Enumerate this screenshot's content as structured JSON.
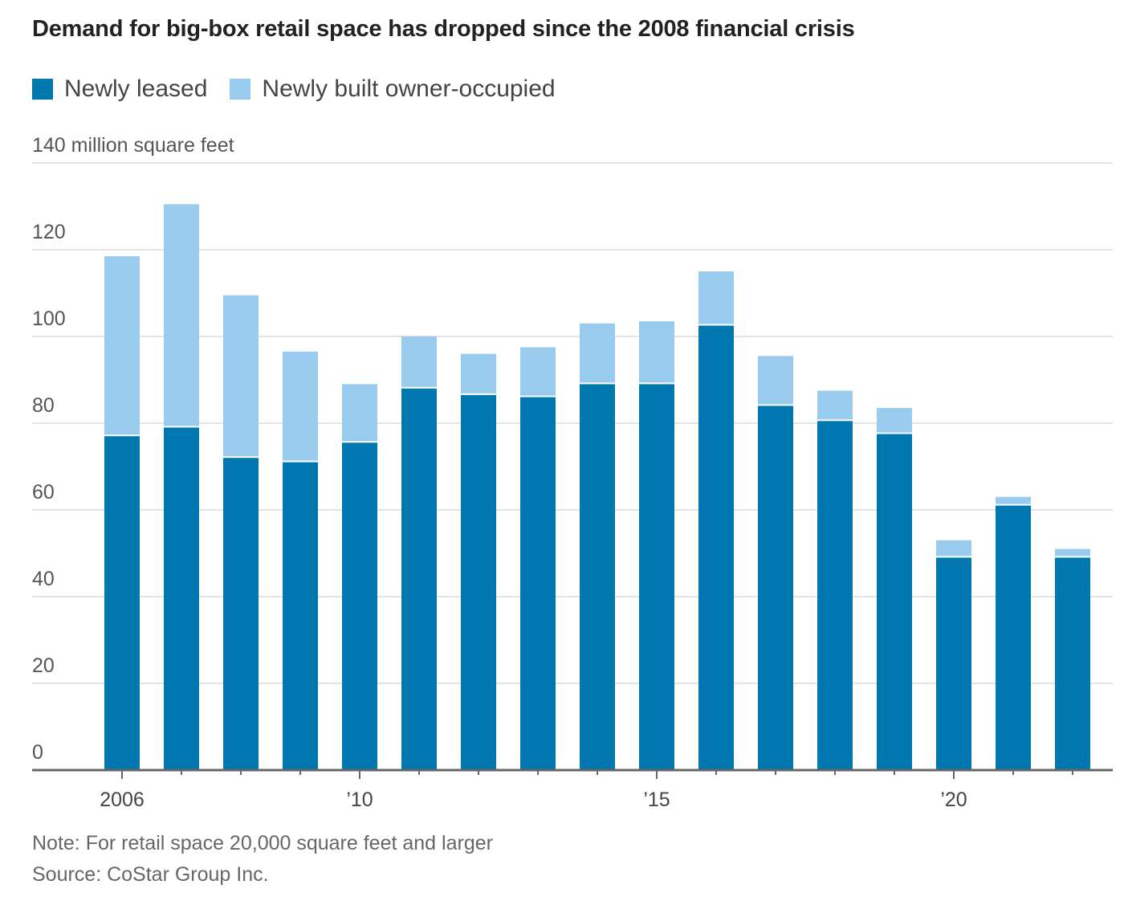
{
  "chart_data": {
    "type": "bar",
    "stacked": true,
    "title": "Demand for big-box retail space has dropped since the 2008 financial crisis",
    "ylabel": "140 million square feet",
    "xlabel": "",
    "ylim": [
      0,
      140
    ],
    "yticks": [
      0,
      20,
      40,
      60,
      80,
      100,
      120,
      140
    ],
    "ytick_labels": [
      "0",
      "20",
      "40",
      "60",
      "80",
      "100",
      "120",
      "140 million square feet"
    ],
    "categories": [
      2006,
      2007,
      2008,
      2009,
      2010,
      2011,
      2012,
      2013,
      2014,
      2015,
      2016,
      2017,
      2018,
      2019,
      2020,
      2021,
      2022
    ],
    "xticks": [
      {
        "year": 2006,
        "label": "2006"
      },
      {
        "year": 2010,
        "label": "’10"
      },
      {
        "year": 2015,
        "label": "’15"
      },
      {
        "year": 2020,
        "label": "’20"
      }
    ],
    "series": [
      {
        "name": "Newly leased",
        "color": "#0077ae",
        "values": [
          77,
          79,
          72,
          71,
          75.5,
          88,
          86.5,
          86,
          89,
          89,
          102.5,
          84,
          80.5,
          77.5,
          49,
          61,
          49
        ]
      },
      {
        "name": "Newly built owner-occupied",
        "color": "#98cbed",
        "values": [
          41.5,
          51.5,
          37.5,
          25.5,
          13.5,
          12,
          9.5,
          11.5,
          14,
          14.5,
          12.5,
          11.5,
          7,
          6,
          4,
          2,
          2
        ]
      }
    ],
    "grid": true,
    "legend_position": "top-left"
  },
  "note": "Note: For retail space 20,000 square feet and larger",
  "source": "Source: CoStar Group Inc."
}
